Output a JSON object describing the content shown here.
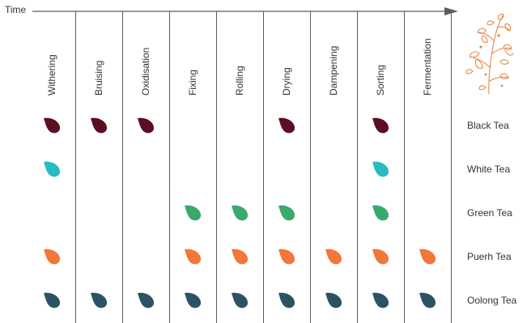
{
  "time_label": "Time",
  "processes": [
    "Withering",
    "Bruising",
    "Oxidisation",
    "Fixing",
    "Rolling",
    "Drying",
    "Dampening",
    "Sorting",
    "Fermentation"
  ],
  "teas": [
    {
      "name": "Black Tea",
      "color": "#5a1020",
      "steps": [
        "Withering",
        "Bruising",
        "Oxidisation",
        "Drying",
        "Sorting"
      ]
    },
    {
      "name": "White Tea",
      "color": "#27bcc4",
      "steps": [
        "Withering",
        "Sorting"
      ]
    },
    {
      "name": "Green Tea",
      "color": "#3aa96c",
      "steps": [
        "Fixing",
        "Rolling",
        "Drying",
        "Sorting"
      ]
    },
    {
      "name": "Puerh Tea",
      "color": "#f2773a",
      "steps": [
        "Withering",
        "Fixing",
        "Rolling",
        "Drying",
        "Dampening",
        "Sorting",
        "Fermentation"
      ]
    },
    {
      "name": "Oolong Tea",
      "color": "#2c5364",
      "steps": [
        "Withering",
        "Bruising",
        "Oxidisation",
        "Fixing",
        "Rolling",
        "Drying",
        "Dampening",
        "Sorting",
        "Fermentation"
      ]
    }
  ],
  "icons": {
    "process_marker": "tea-leaf-icon",
    "illustration": "tea-plant-icon"
  },
  "colors": {
    "axis": "#555d66",
    "illustration": "#e8874e"
  }
}
